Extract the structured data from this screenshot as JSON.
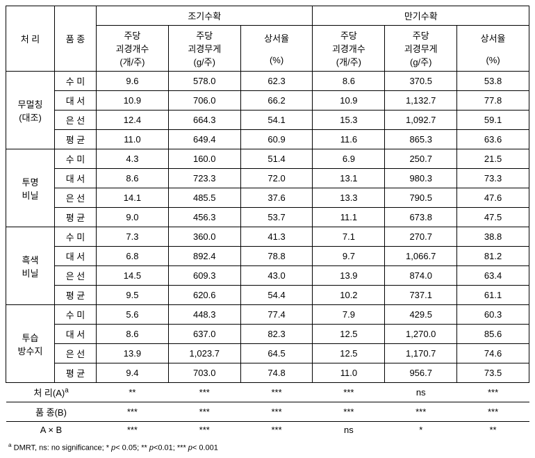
{
  "header": {
    "treatment": "처 리",
    "variety": "품 종",
    "early": "조기수확",
    "late": "만기수확",
    "cols": {
      "count": "주당\n괴경개수\n(개/주)",
      "weight": "주당\n괴경무게\n(g/주)",
      "rate": "상서율\n\n(%)"
    }
  },
  "treatments": [
    {
      "label": "무멀칭\n(대조)"
    },
    {
      "label": "투명\n비닐"
    },
    {
      "label": "흑색\n비닐"
    },
    {
      "label": "투습\n방수지"
    }
  ],
  "varieties": {
    "v1": "수 미",
    "v2": "대 서",
    "v3": "은 선",
    "avg": "평 균"
  },
  "rows": [
    {
      "t": 0,
      "v": "v1",
      "e": [
        "9.6",
        "578.0",
        "62.3"
      ],
      "l": [
        "8.6",
        "370.5",
        "53.8"
      ]
    },
    {
      "t": 0,
      "v": "v2",
      "e": [
        "10.9",
        "706.0",
        "66.2"
      ],
      "l": [
        "10.9",
        "1,132.7",
        "77.8"
      ]
    },
    {
      "t": 0,
      "v": "v3",
      "e": [
        "12.4",
        "664.3",
        "54.1"
      ],
      "l": [
        "15.3",
        "1,092.7",
        "59.1"
      ]
    },
    {
      "t": 0,
      "v": "avg",
      "e": [
        "11.0",
        "649.4",
        "60.9"
      ],
      "l": [
        "11.6",
        "865.3",
        "63.6"
      ]
    },
    {
      "t": 1,
      "v": "v1",
      "e": [
        "4.3",
        "160.0",
        "51.4"
      ],
      "l": [
        "6.9",
        "250.7",
        "21.5"
      ]
    },
    {
      "t": 1,
      "v": "v2",
      "e": [
        "8.6",
        "723.3",
        "72.0"
      ],
      "l": [
        "13.1",
        "980.3",
        "73.3"
      ]
    },
    {
      "t": 1,
      "v": "v3",
      "e": [
        "14.1",
        "485.5",
        "37.6"
      ],
      "l": [
        "13.3",
        "790.5",
        "47.6"
      ]
    },
    {
      "t": 1,
      "v": "avg",
      "e": [
        "9.0",
        "456.3",
        "53.7"
      ],
      "l": [
        "11.1",
        "673.8",
        "47.5"
      ]
    },
    {
      "t": 2,
      "v": "v1",
      "e": [
        "7.3",
        "360.0",
        "41.3"
      ],
      "l": [
        "7.1",
        "270.7",
        "38.8"
      ]
    },
    {
      "t": 2,
      "v": "v2",
      "e": [
        "6.8",
        "892.4",
        "78.8"
      ],
      "l": [
        "9.7",
        "1,066.7",
        "81.2"
      ]
    },
    {
      "t": 2,
      "v": "v3",
      "e": [
        "14.5",
        "609.3",
        "43.0"
      ],
      "l": [
        "13.9",
        "874.0",
        "63.4"
      ]
    },
    {
      "t": 2,
      "v": "avg",
      "e": [
        "9.5",
        "620.6",
        "54.4"
      ],
      "l": [
        "10.2",
        "737.1",
        "61.1"
      ]
    },
    {
      "t": 3,
      "v": "v1",
      "e": [
        "5.6",
        "448.3",
        "77.4"
      ],
      "l": [
        "7.9",
        "429.5",
        "60.3"
      ]
    },
    {
      "t": 3,
      "v": "v2",
      "e": [
        "8.6",
        "637.0",
        "82.3"
      ],
      "l": [
        "12.5",
        "1,270.0",
        "85.6"
      ]
    },
    {
      "t": 3,
      "v": "v3",
      "e": [
        "13.9",
        "1,023.7",
        "64.5"
      ],
      "l": [
        "12.5",
        "1,170.7",
        "74.6"
      ]
    },
    {
      "t": 3,
      "v": "avg",
      "e": [
        "9.4",
        "703.0",
        "74.8"
      ],
      "l": [
        "11.0",
        "956.7",
        "73.5"
      ]
    }
  ],
  "sig": {
    "A": {
      "label": "처 리(A)",
      "vals": [
        "**",
        "***",
        "***",
        "***",
        "ns",
        "***"
      ]
    },
    "B": {
      "label": "품 종(B)",
      "vals": [
        "***",
        "***",
        "***",
        "***",
        "***",
        "***"
      ]
    },
    "AB": {
      "label": "A × B",
      "vals": [
        "***",
        "***",
        "***",
        "ns",
        "*",
        "**"
      ]
    }
  },
  "footnote": {
    "marker": "a",
    "text": " DMRT, ns: no significance; * ",
    "p1": "p",
    "p1t": "< 0.05; ** ",
    "p2": "p",
    "p2t": "<0.01;  *** ",
    "p3": "p",
    "p3t": "< 0.001"
  },
  "sup_a": "a"
}
